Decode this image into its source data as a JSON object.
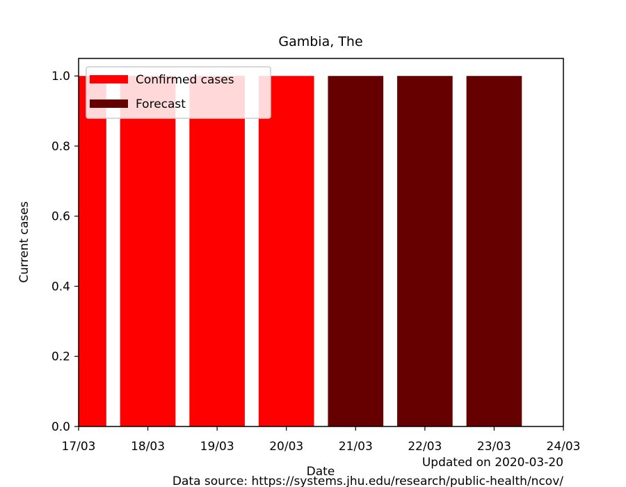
{
  "chart_data": {
    "type": "bar",
    "title": "Gambia, The",
    "xlabel": "Date",
    "ylabel": "Current cases",
    "ylim": [
      0,
      1.05
    ],
    "xlim": [
      "2020-03-17",
      "2020-03-24"
    ],
    "x_ticks": [
      "17/03",
      "18/03",
      "19/03",
      "20/03",
      "21/03",
      "22/03",
      "23/03",
      "24/03"
    ],
    "y_ticks": [
      "0.0",
      "0.2",
      "0.4",
      "0.6",
      "0.8",
      "1.0"
    ],
    "legend_position": "top-left",
    "series": [
      {
        "name": "Confirmed cases",
        "color": "#ff0000",
        "points": [
          {
            "x": "2020-03-17",
            "y": 1
          },
          {
            "x": "2020-03-18",
            "y": 1
          },
          {
            "x": "2020-03-19",
            "y": 1
          },
          {
            "x": "2020-03-20",
            "y": 1
          }
        ]
      },
      {
        "name": "Forecast",
        "color": "#660000",
        "points": [
          {
            "x": "2020-03-21",
            "y": 1
          },
          {
            "x": "2020-03-22",
            "y": 1
          },
          {
            "x": "2020-03-23",
            "y": 1
          }
        ]
      }
    ]
  },
  "footer": {
    "updated": "Updated on 2020-03-20",
    "source": "Data source: https://systems.jhu.edu/research/public-health/ncov/"
  }
}
